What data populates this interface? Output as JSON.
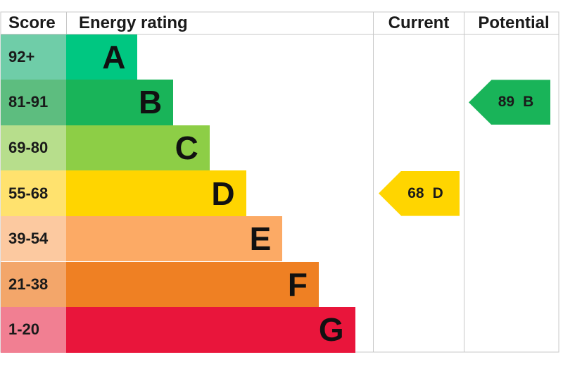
{
  "header": {
    "score": "Score",
    "rating": "Energy rating",
    "current": "Current",
    "potential": "Potential"
  },
  "chart_data": {
    "type": "bar",
    "categories": [
      "A",
      "B",
      "C",
      "D",
      "E",
      "F",
      "G"
    ],
    "score_ranges": [
      "92+",
      "81-91",
      "69-80",
      "55-68",
      "39-54",
      "21-38",
      "1-20"
    ],
    "band_colors": [
      "#00c781",
      "#19b459",
      "#8dce46",
      "#ffd500",
      "#fcaa65",
      "#ef8023",
      "#e9153b"
    ],
    "score_cell_colors": [
      "#6fcda8",
      "#5dbd7f",
      "#b7de8c",
      "#ffe26e",
      "#fcc9a0",
      "#f3a66a",
      "#f17f92"
    ],
    "current": {
      "value": 68,
      "band": "D",
      "color": "#ffd500"
    },
    "potential": {
      "value": 89,
      "band": "B",
      "color": "#19b459"
    }
  }
}
